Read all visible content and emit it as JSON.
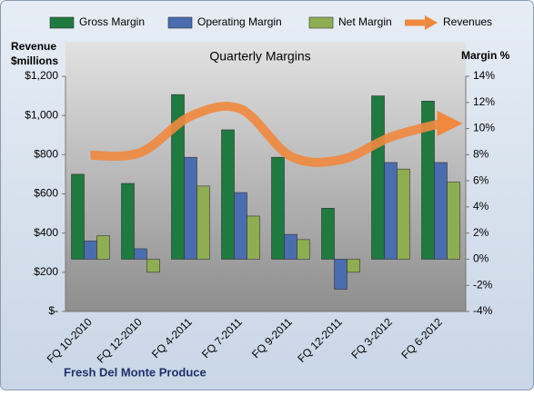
{
  "chart_data": {
    "type": "bar",
    "title": "Quarterly Margins",
    "y_label": [
      "Revenue",
      "$millions"
    ],
    "y2_label": "Margin %",
    "footer": "Fresh Del Monte Produce",
    "categories": [
      "FQ 10-2010",
      "FQ 12-2010",
      "FQ 4-2011",
      "FQ 7-2011",
      "FQ 9-2011",
      "FQ 12-2011",
      "FQ 3-2012",
      "FQ 6-2012"
    ],
    "series": [
      {
        "name": "Gross Margin",
        "color": "#1f7a3f",
        "axis": "y2",
        "values": [
          6.5,
          5.8,
          12.6,
          9.9,
          7.8,
          3.9,
          12.5,
          12.1
        ]
      },
      {
        "name": "Operating Margin",
        "color": "#4a6db0",
        "axis": "y2",
        "values": [
          1.4,
          0.8,
          7.8,
          5.1,
          1.9,
          -2.3,
          7.4,
          7.4
        ]
      },
      {
        "name": "Net Margin",
        "color": "#8fae52",
        "axis": "y2",
        "values": [
          1.8,
          -1.0,
          5.6,
          3.3,
          1.5,
          -1.0,
          6.9,
          5.9
        ]
      },
      {
        "name": "Revenues",
        "color": "#f0883e",
        "type": "line",
        "axis": "y",
        "values": [
          797,
          811,
          996,
          1033,
          792,
          774,
          890,
          959
        ]
      }
    ],
    "ylim": [
      0,
      1200
    ],
    "yticks": [
      {
        "value": 0,
        "label": "$-"
      },
      {
        "value": 200,
        "label": "$200"
      },
      {
        "value": 400,
        "label": "$400"
      },
      {
        "value": 600,
        "label": "$600"
      },
      {
        "value": 800,
        "label": "$800"
      },
      {
        "value": 1000,
        "label": "$1,000"
      },
      {
        "value": 1200,
        "label": "$1,200"
      }
    ],
    "y2lim": [
      -4,
      14
    ],
    "y2ticks": [
      {
        "value": -4,
        "label": "-4%"
      },
      {
        "value": -2,
        "label": "-2%"
      },
      {
        "value": 0,
        "label": "0%"
      },
      {
        "value": 2,
        "label": "2%"
      },
      {
        "value": 4,
        "label": "4%"
      },
      {
        "value": 6,
        "label": "6%"
      },
      {
        "value": 8,
        "label": "8%"
      },
      {
        "value": 10,
        "label": "10%"
      },
      {
        "value": 12,
        "label": "12%"
      },
      {
        "value": 14,
        "label": "14%"
      }
    ],
    "legend": "top"
  }
}
